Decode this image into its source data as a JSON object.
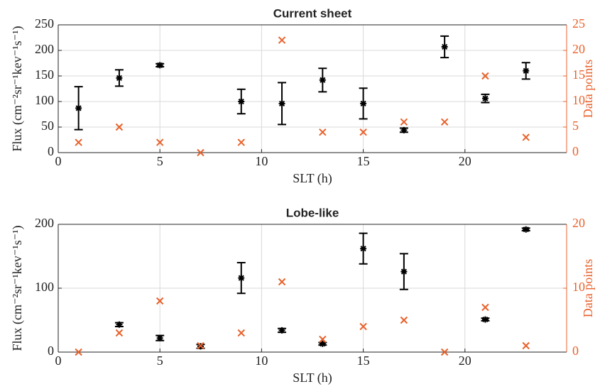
{
  "chart_data": [
    {
      "type": "scatter",
      "title": "Current sheet",
      "xlabel": "SLT (h)",
      "ylabel": "Flux (cm⁻²sr⁻¹kev⁻¹s⁻¹)",
      "y2label": "Data points",
      "xlim": [
        0,
        25
      ],
      "xticks": [
        0,
        5,
        10,
        15,
        20
      ],
      "ylim": [
        0,
        250
      ],
      "yticks": [
        0,
        50,
        100,
        150,
        200,
        250
      ],
      "y2lim": [
        0,
        25
      ],
      "y2ticks": [
        0,
        5,
        10,
        15,
        20,
        25
      ],
      "grid": true,
      "series": [
        {
          "color": "#000000",
          "marker": "asterisk",
          "x": [
            1,
            3,
            5,
            9,
            11,
            13,
            15,
            17,
            19,
            21,
            23
          ],
          "values": [
            87,
            146,
            171,
            100,
            96,
            142,
            96,
            44,
            207,
            106,
            160
          ],
          "errors": [
            42,
            16,
            3,
            24,
            41,
            23,
            30,
            4,
            21,
            8,
            16
          ]
        },
        {
          "color": "#e8622c",
          "marker": "x",
          "axis": "y2",
          "x": [
            1,
            3,
            5,
            7,
            9,
            11,
            13,
            15,
            17,
            19,
            21,
            23
          ],
          "values": [
            2,
            5,
            2,
            0,
            2,
            22,
            4,
            4,
            6,
            6,
            15,
            3
          ]
        }
      ]
    },
    {
      "type": "scatter",
      "title": "Lobe-like",
      "xlabel": "SLT (h)",
      "ylabel": "Flux (cm⁻²sr⁻¹kev⁻¹s⁻¹)",
      "y2label": "Data points",
      "xlim": [
        0,
        25
      ],
      "xticks": [
        0,
        5,
        10,
        15,
        20
      ],
      "ylim": [
        0,
        200
      ],
      "yticks": [
        0,
        100,
        200
      ],
      "y2lim": [
        0,
        20
      ],
      "y2ticks": [
        0,
        10,
        20
      ],
      "grid": true,
      "series": [
        {
          "color": "#000000",
          "marker": "asterisk",
          "x": [
            3,
            5,
            7,
            9,
            11,
            13,
            15,
            17,
            21,
            23
          ],
          "values": [
            43,
            22,
            9,
            116,
            34,
            13,
            162,
            126,
            51,
            192
          ],
          "errors": [
            3,
            4,
            3,
            24,
            3,
            2,
            24,
            28,
            2,
            2
          ]
        },
        {
          "color": "#e8622c",
          "marker": "x",
          "axis": "y2",
          "x": [
            1,
            3,
            5,
            7,
            9,
            11,
            13,
            15,
            17,
            19,
            21,
            23
          ],
          "values": [
            0,
            3,
            8,
            1,
            3,
            11,
            2,
            4,
            5,
            0,
            7,
            1
          ]
        }
      ]
    }
  ]
}
